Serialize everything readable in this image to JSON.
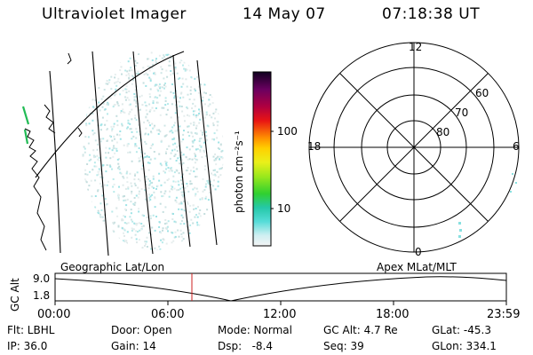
{
  "header": {
    "instrument": "Ultraviolet Imager",
    "date": "14 May 07",
    "time": "07:18:38 UT"
  },
  "colorbar": {
    "unit_label": "photon cm⁻²s⁻¹",
    "ticks": [
      "100",
      "10"
    ]
  },
  "polar": {
    "mlt_labels": {
      "top": "12",
      "left": "18",
      "right": "6",
      "bottom": "0"
    },
    "lat_labels": [
      "60",
      "70",
      "80"
    ]
  },
  "orbit": {
    "left_title": "Geographic Lat/Lon",
    "right_title": "Apex  MLat/MLT",
    "ylabel": "GC Alt",
    "ytick_max": "9.0",
    "ytick_min": "1.8",
    "x_ticks": [
      "00:00",
      "06:00",
      "12:00",
      "18:00",
      "23:59"
    ]
  },
  "footer": {
    "col1": [
      "Flt: LBHL",
      "IP: 36.0"
    ],
    "col2": [
      "Door: Open",
      "Gain: 14"
    ],
    "col3": [
      "Mode: Normal",
      "Dsp:   -8.4"
    ],
    "col4": [
      "GC Alt: 4.7 Re",
      "Seq: 39"
    ],
    "col5": [
      "GLat: -45.3",
      "GLon: 334.1"
    ]
  }
}
